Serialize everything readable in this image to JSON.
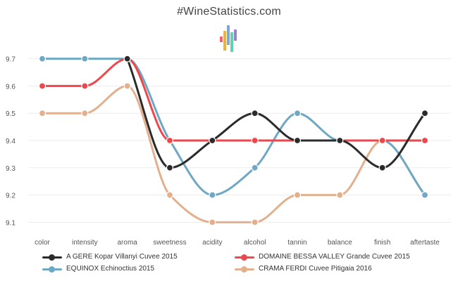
{
  "header": {
    "title": "#WineStatistics.com"
  },
  "logo": {
    "icon": "wine-bars-logo-icon",
    "colors": [
      "#f06470",
      "#f2b134",
      "#7ea6d8",
      "#5fd3b0",
      "#9b7fd0"
    ]
  },
  "chart_data": {
    "type": "line",
    "title": "#WineStatistics.com",
    "xlabel": "",
    "ylabel": "",
    "categories": [
      "color",
      "intensity",
      "aroma",
      "sweetness",
      "acidity",
      "alcohol",
      "tannin",
      "balance",
      "finish",
      "aftertaste"
    ],
    "ylim": [
      9.07,
      9.73
    ],
    "yticks": [
      "9.7",
      "9.6",
      "9.5",
      "9.4",
      "9.3",
      "9.2",
      "9.1"
    ],
    "grid": true,
    "legend_position": "bottom",
    "series": [
      {
        "name": "A GERE Kopar Villanyi Cuvee 2015",
        "color": "#2b2b2b",
        "values": [
          null,
          null,
          9.7,
          9.3,
          9.4,
          9.5,
          9.4,
          9.4,
          9.3,
          9.5
        ]
      },
      {
        "name": "DOMAINE BESSA VALLEY Grande Cuvee 2015",
        "color": "#f0464b",
        "values": [
          9.6,
          9.6,
          9.7,
          9.4,
          9.4,
          9.4,
          9.4,
          9.4,
          9.4,
          9.4
        ]
      },
      {
        "name": "EQUINOX Echinoctius 2015",
        "color": "#6fa8c4",
        "values": [
          9.7,
          9.7,
          9.7,
          9.4,
          9.2,
          9.3,
          9.5,
          9.4,
          9.4,
          9.2
        ]
      },
      {
        "name": "CRAMA FERDI Cuvee Pitigaia 2016",
        "color": "#e3b08e",
        "values": [
          9.5,
          9.5,
          9.6,
          9.2,
          9.1,
          9.1,
          9.2,
          9.2,
          9.4,
          9.2
        ]
      }
    ]
  }
}
